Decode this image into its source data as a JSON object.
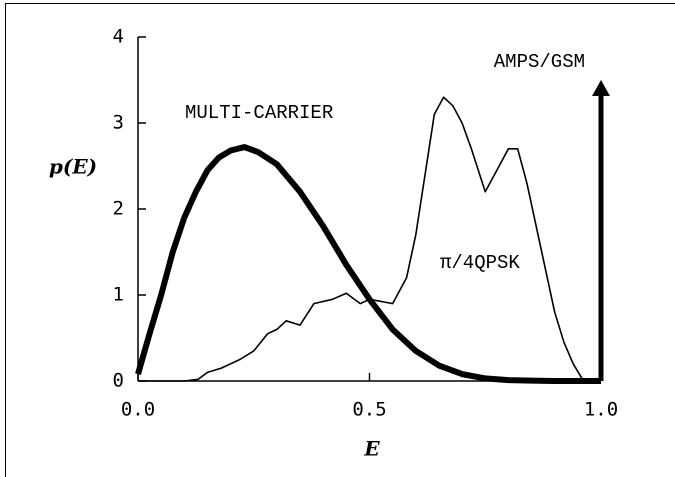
{
  "chart_data": {
    "type": "line",
    "xlabel": "E",
    "ylabel": "p(E)",
    "xlim": [
      0,
      1.0
    ],
    "ylim": [
      0,
      4
    ],
    "xticks": [
      {
        "value": 0,
        "label": "0.0"
      },
      0.5,
      {
        "value": 1.0,
        "label": "1.0"
      }
    ],
    "yticks": [
      0,
      1,
      2,
      3,
      4
    ],
    "series": [
      {
        "name": "MULTI-CARRIER",
        "color": "#000000",
        "x": [
          0,
          0.025,
          0.05,
          0.075,
          0.1,
          0.125,
          0.15,
          0.175,
          0.2,
          0.23,
          0.26,
          0.3,
          0.35,
          0.4,
          0.45,
          0.5,
          0.55,
          0.6,
          0.65,
          0.7,
          0.75,
          0.8,
          0.85,
          0.9,
          1.0
        ],
        "values": [
          0.08,
          0.55,
          1.0,
          1.5,
          1.9,
          2.2,
          2.45,
          2.6,
          2.68,
          2.72,
          2.66,
          2.52,
          2.2,
          1.8,
          1.35,
          0.95,
          0.6,
          0.35,
          0.18,
          0.08,
          0.03,
          0.01,
          0.005,
          0,
          0
        ]
      },
      {
        "name": "π/4QPSK",
        "color": "#000000",
        "x": [
          0,
          0.1,
          0.13,
          0.15,
          0.18,
          0.2,
          0.22,
          0.25,
          0.28,
          0.3,
          0.32,
          0.35,
          0.38,
          0.42,
          0.45,
          0.48,
          0.5,
          0.53,
          0.55,
          0.58,
          0.6,
          0.62,
          0.64,
          0.66,
          0.68,
          0.7,
          0.72,
          0.75,
          0.77,
          0.8,
          0.82,
          0.84,
          0.86,
          0.88,
          0.9,
          0.92,
          0.94,
          0.96,
          1.0
        ],
        "values": [
          0,
          0,
          0.02,
          0.1,
          0.15,
          0.2,
          0.25,
          0.35,
          0.55,
          0.6,
          0.7,
          0.65,
          0.9,
          0.95,
          1.02,
          0.9,
          0.95,
          0.92,
          0.9,
          1.2,
          1.7,
          2.4,
          3.1,
          3.3,
          3.2,
          3.0,
          2.7,
          2.2,
          2.4,
          2.7,
          2.7,
          2.3,
          1.8,
          1.3,
          0.8,
          0.45,
          0.2,
          0.02,
          0
        ]
      },
      {
        "name": "AMPS/GSM",
        "color": "#000000",
        "spike": true,
        "x": [
          1.0
        ],
        "values": [
          3.5
        ]
      }
    ]
  }
}
